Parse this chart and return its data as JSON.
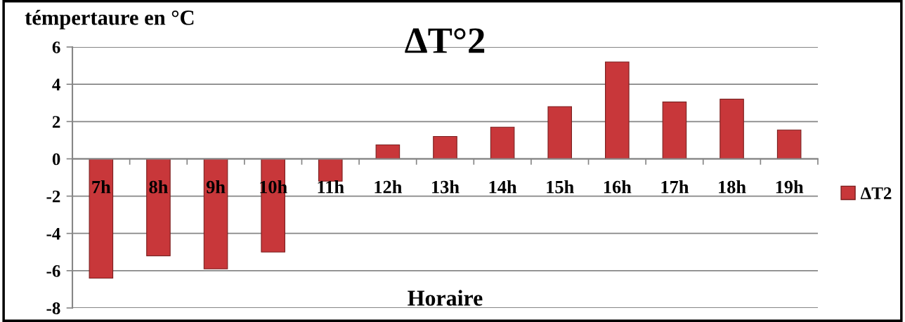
{
  "chart_data": {
    "type": "bar",
    "title": "ΔT°2",
    "xlabel": "Horaire",
    "ylabel": "témpertaure en °C",
    "categories": [
      "7h",
      "8h",
      "9h",
      "10h",
      "11h",
      "12h",
      "13h",
      "14h",
      "15h",
      "16h",
      "17h",
      "18h",
      "19h"
    ],
    "series": [
      {
        "name": "ΔT2",
        "color": "#c8373a",
        "values": [
          -6.4,
          -5.2,
          -5.9,
          -5.0,
          -1.2,
          0.75,
          1.2,
          1.7,
          2.8,
          5.2,
          3.05,
          3.2,
          1.55
        ]
      }
    ],
    "ylim": [
      -8,
      6
    ],
    "yticks": [
      -8,
      -6,
      -4,
      -2,
      0,
      2,
      4,
      6
    ],
    "grid": "y",
    "legend": "right"
  }
}
